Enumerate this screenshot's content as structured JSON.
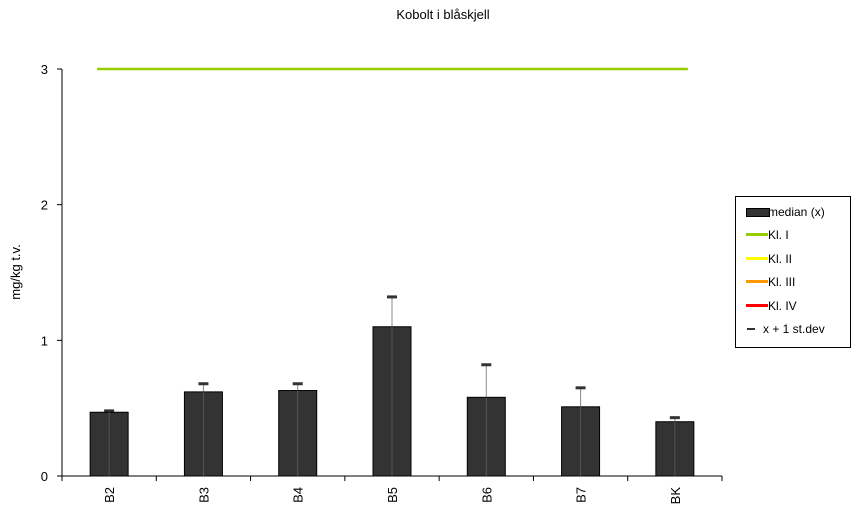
{
  "chart_data": {
    "type": "bar",
    "title": "Kobolt i blåskjell",
    "xlabel": "",
    "ylabel": "mg/kg t.v.",
    "ylim": [
      0,
      3
    ],
    "yticks": [
      0,
      1,
      2,
      3
    ],
    "grid": false,
    "legend_position": "right",
    "categories": [
      "B2",
      "B3",
      "B4",
      "B5",
      "B6",
      "B7",
      "BK"
    ],
    "series": [
      {
        "name": "median (x)",
        "kind": "bar",
        "color": "#333333",
        "values": [
          0.47,
          0.62,
          0.63,
          1.1,
          0.58,
          0.51,
          0.4
        ]
      },
      {
        "name": "x + 1 st.dev",
        "kind": "error-cap",
        "color": "#333333",
        "values": [
          0.48,
          0.68,
          0.68,
          1.32,
          0.82,
          0.65,
          0.43
        ]
      },
      {
        "name": "Kl. I",
        "kind": "hline",
        "color": "#99cc00",
        "value": 3
      },
      {
        "name": "Kl. II",
        "kind": "hline",
        "color": "#ffff00",
        "value": null
      },
      {
        "name": "Kl. III",
        "kind": "hline",
        "color": "#ff9900",
        "value": null
      },
      {
        "name": "Kl. IV",
        "kind": "hline",
        "color": "#ff0000",
        "value": null
      }
    ]
  }
}
